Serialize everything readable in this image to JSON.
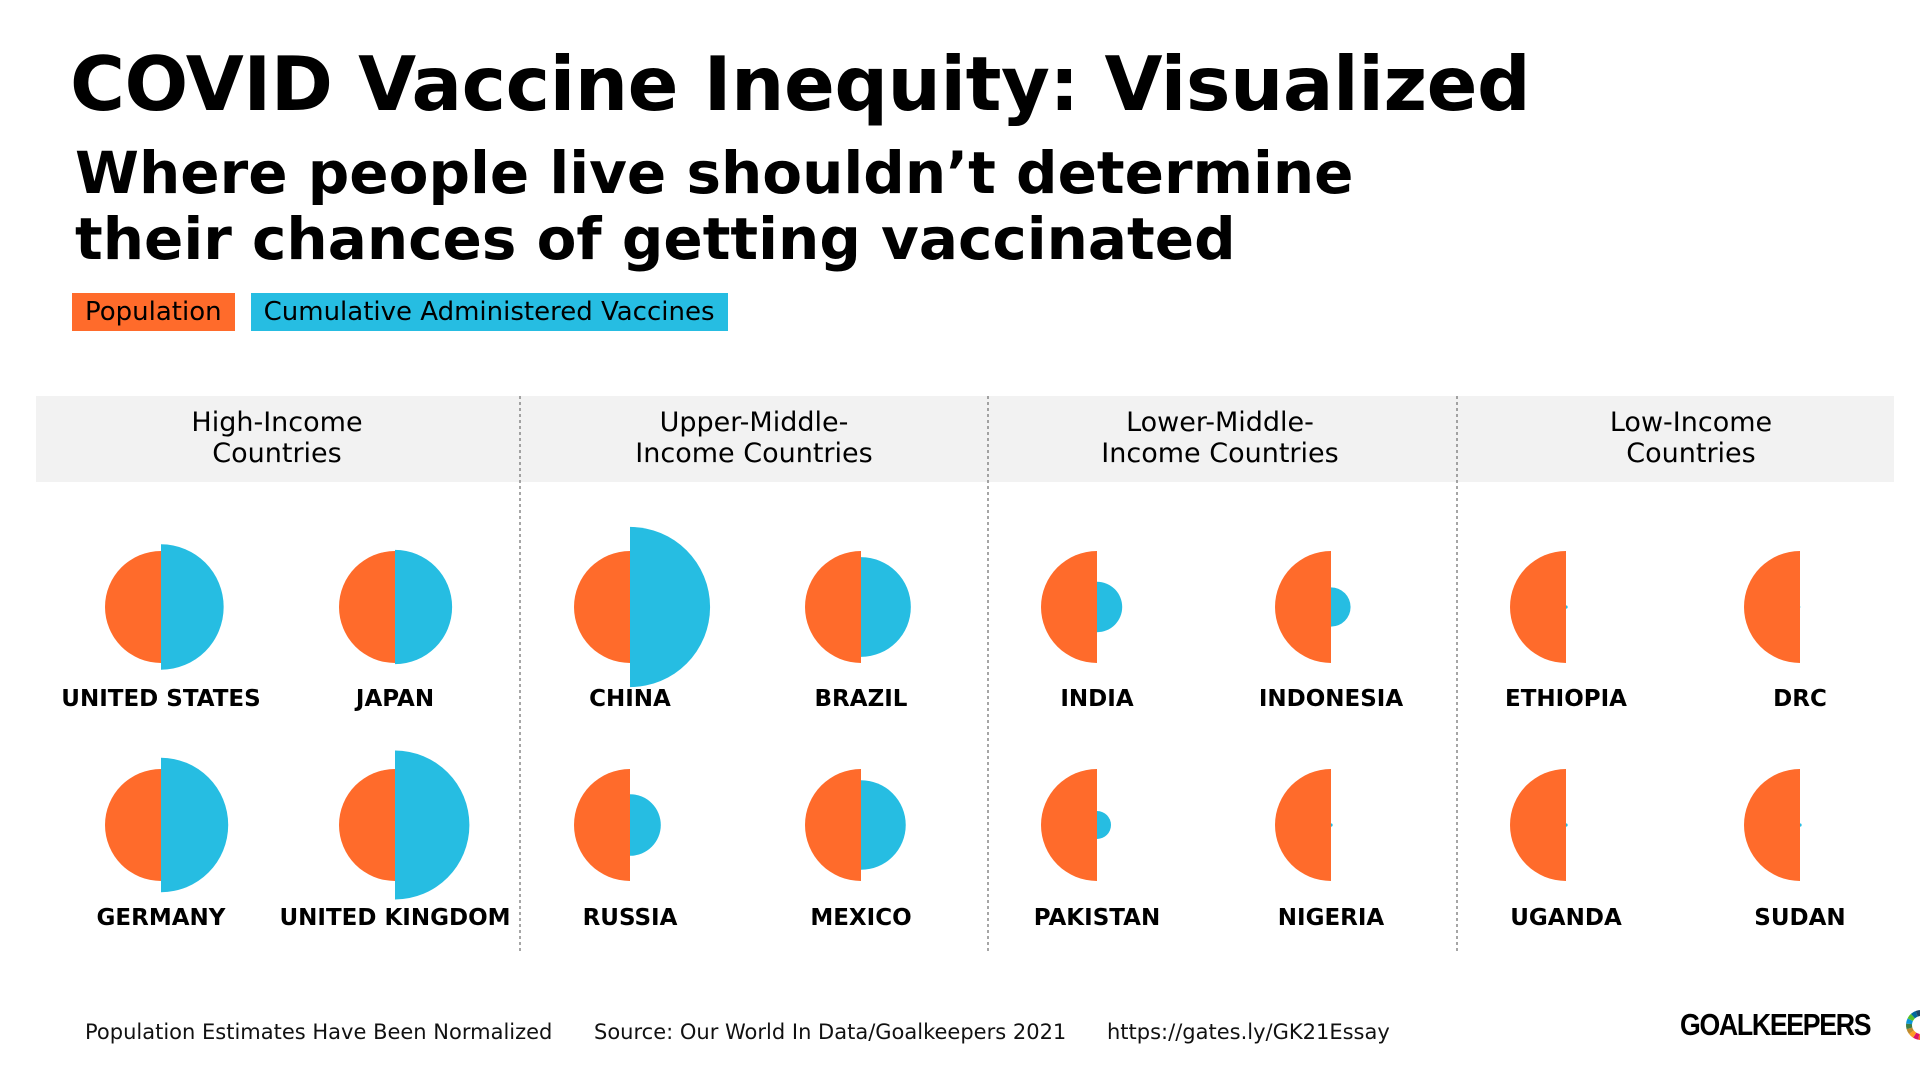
{
  "title": "COVID Vaccine Inequity: Visualized",
  "subtitle": {
    "line1": "Where people live shouldn’t determine",
    "line2": "their chances of getting vaccinated"
  },
  "legend": {
    "population": {
      "label": "Population",
      "color": "#ff6b2b"
    },
    "vaccines": {
      "label": "Cumulative Administered Vaccines",
      "color": "#26bde2"
    }
  },
  "colors": {
    "header_bg": "#f2f2f2",
    "divider": "#888888"
  },
  "chart_data": {
    "type": "paired half-circles",
    "note": "Left half-circle = population (normalized to 1). Right half-circle = cumulative administered vaccines relative to population (radius scale).",
    "groups": [
      {
        "name": "High-Income Countries",
        "label_lines": [
          "High-Income",
          "Countries"
        ],
        "countries": [
          {
            "name": "UNITED STATES",
            "population": 1,
            "vaccines": 1.12
          },
          {
            "name": "JAPAN",
            "population": 1,
            "vaccines": 1.02
          },
          {
            "name": "GERMANY",
            "population": 1,
            "vaccines": 1.2
          },
          {
            "name": "UNITED KINGDOM",
            "population": 1,
            "vaccines": 1.33
          }
        ]
      },
      {
        "name": "Upper-Middle-Income Countries",
        "label_lines": [
          "Upper-Middle-",
          "Income Countries"
        ],
        "countries": [
          {
            "name": "CHINA",
            "population": 1,
            "vaccines": 1.43
          },
          {
            "name": "BRAZIL",
            "population": 1,
            "vaccines": 0.89
          },
          {
            "name": "RUSSIA",
            "population": 1,
            "vaccines": 0.55
          },
          {
            "name": "MEXICO",
            "population": 1,
            "vaccines": 0.8
          }
        ]
      },
      {
        "name": "Lower-Middle-Income Countries",
        "label_lines": [
          "Lower-Middle-",
          "Income Countries"
        ],
        "countries": [
          {
            "name": "INDIA",
            "population": 1,
            "vaccines": 0.45
          },
          {
            "name": "INDONESIA",
            "population": 1,
            "vaccines": 0.35
          },
          {
            "name": "PAKISTAN",
            "population": 1,
            "vaccines": 0.25
          },
          {
            "name": "NIGERIA",
            "population": 1,
            "vaccines": 0.03
          }
        ]
      },
      {
        "name": "Low-Income Countries",
        "label_lines": [
          "Low-Income",
          "Countries"
        ],
        "countries": [
          {
            "name": "ETHIOPIA",
            "population": 1,
            "vaccines": 0.03
          },
          {
            "name": "DRC",
            "population": 1,
            "vaccines": 0.01
          },
          {
            "name": "UGANDA",
            "population": 1,
            "vaccines": 0.03
          },
          {
            "name": "SUDAN",
            "population": 1,
            "vaccines": 0.03
          }
        ]
      }
    ]
  },
  "footer": {
    "note": "Population Estimates Have Been Normalized",
    "source": "Source: Our World In Data/Goalkeepers 2021",
    "url": "https://gates.ly/GK21Essay"
  },
  "logo": {
    "text": "GOALKEEPERS"
  }
}
